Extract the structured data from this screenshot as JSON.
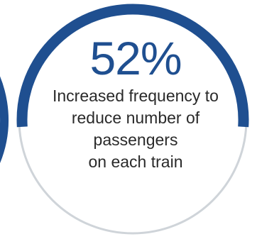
{
  "chart_data": {
    "type": "gauge",
    "value": 52,
    "max": 100,
    "value_label": "52%",
    "caption_lines": [
      "Increased frequency to",
      "reduce number of",
      "passengers",
      "on each train"
    ],
    "colors": {
      "filled": "#1f4f90",
      "track": "#cfd4d9",
      "value_text": "#1f4f90",
      "caption_text": "#2a2a2a"
    }
  }
}
